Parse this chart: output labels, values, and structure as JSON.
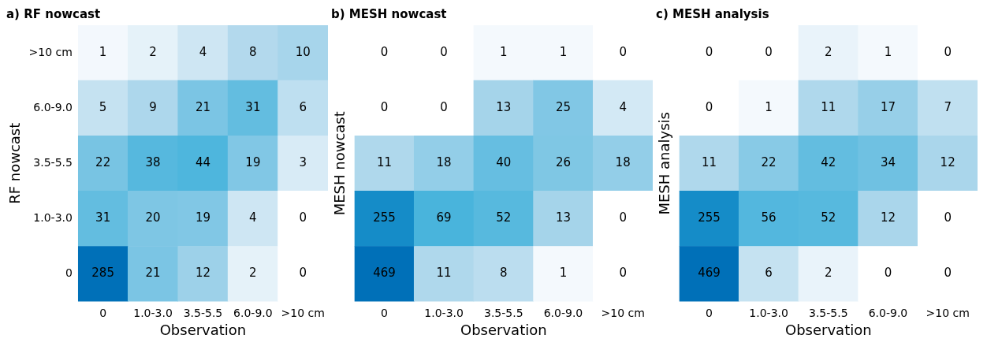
{
  "chart_data": [
    {
      "type": "heatmap",
      "title": "a) RF nowcast",
      "xlabel": "Observation",
      "ylabel": "RF nowcast",
      "categories": [
        "0",
        "1.0-3.0",
        "3.5-5.5",
        "6.0-9.0",
        ">10 cm"
      ],
      "y_categories": [
        ">10 cm",
        "6.0-9.0",
        "3.5-5.5",
        "1.0-3.0",
        "0"
      ],
      "data_labels": true,
      "cells": [
        [
          1,
          2,
          4,
          8,
          10
        ],
        [
          5,
          9,
          21,
          31,
          6
        ],
        [
          22,
          38,
          44,
          19,
          3
        ],
        [
          31,
          20,
          19,
          4,
          0
        ],
        [
          285,
          21,
          12,
          2,
          0
        ]
      ]
    },
    {
      "type": "heatmap",
      "title": "b) MESH nowcast",
      "xlabel": "Observation",
      "ylabel": "MESH nowcast",
      "categories": [
        "0",
        "1.0-3.0",
        "3.5-5.5",
        "6.0-9.0",
        ">10 cm"
      ],
      "y_categories": [
        null,
        null,
        null,
        null,
        null
      ],
      "tick_labels": "x",
      "data_labels": true,
      "cells": [
        [
          0,
          0,
          1,
          1,
          0
        ],
        [
          0,
          0,
          13,
          25,
          4
        ],
        [
          11,
          18,
          40,
          26,
          18
        ],
        [
          255,
          69,
          52,
          13,
          0
        ],
        [
          469,
          11,
          8,
          1,
          0
        ]
      ]
    },
    {
      "type": "heatmap",
      "title": "c) MESH analysis",
      "xlabel": "Observation",
      "ylabel": "MESH analysis",
      "categories": [
        "0",
        "1.0-3.0",
        "3.5-5.5",
        "6.0-9.0",
        ">10 cm"
      ],
      "y_categories": [
        null,
        null,
        null,
        null,
        null
      ],
      "tick_labels": "x",
      "data_labels": true,
      "cells": [
        [
          0,
          0,
          2,
          1,
          0
        ],
        [
          0,
          1,
          11,
          17,
          7
        ],
        [
          11,
          22,
          42,
          34,
          12
        ],
        [
          255,
          56,
          52,
          12,
          0
        ],
        [
          469,
          6,
          2,
          0,
          0
        ]
      ]
    }
  ]
}
